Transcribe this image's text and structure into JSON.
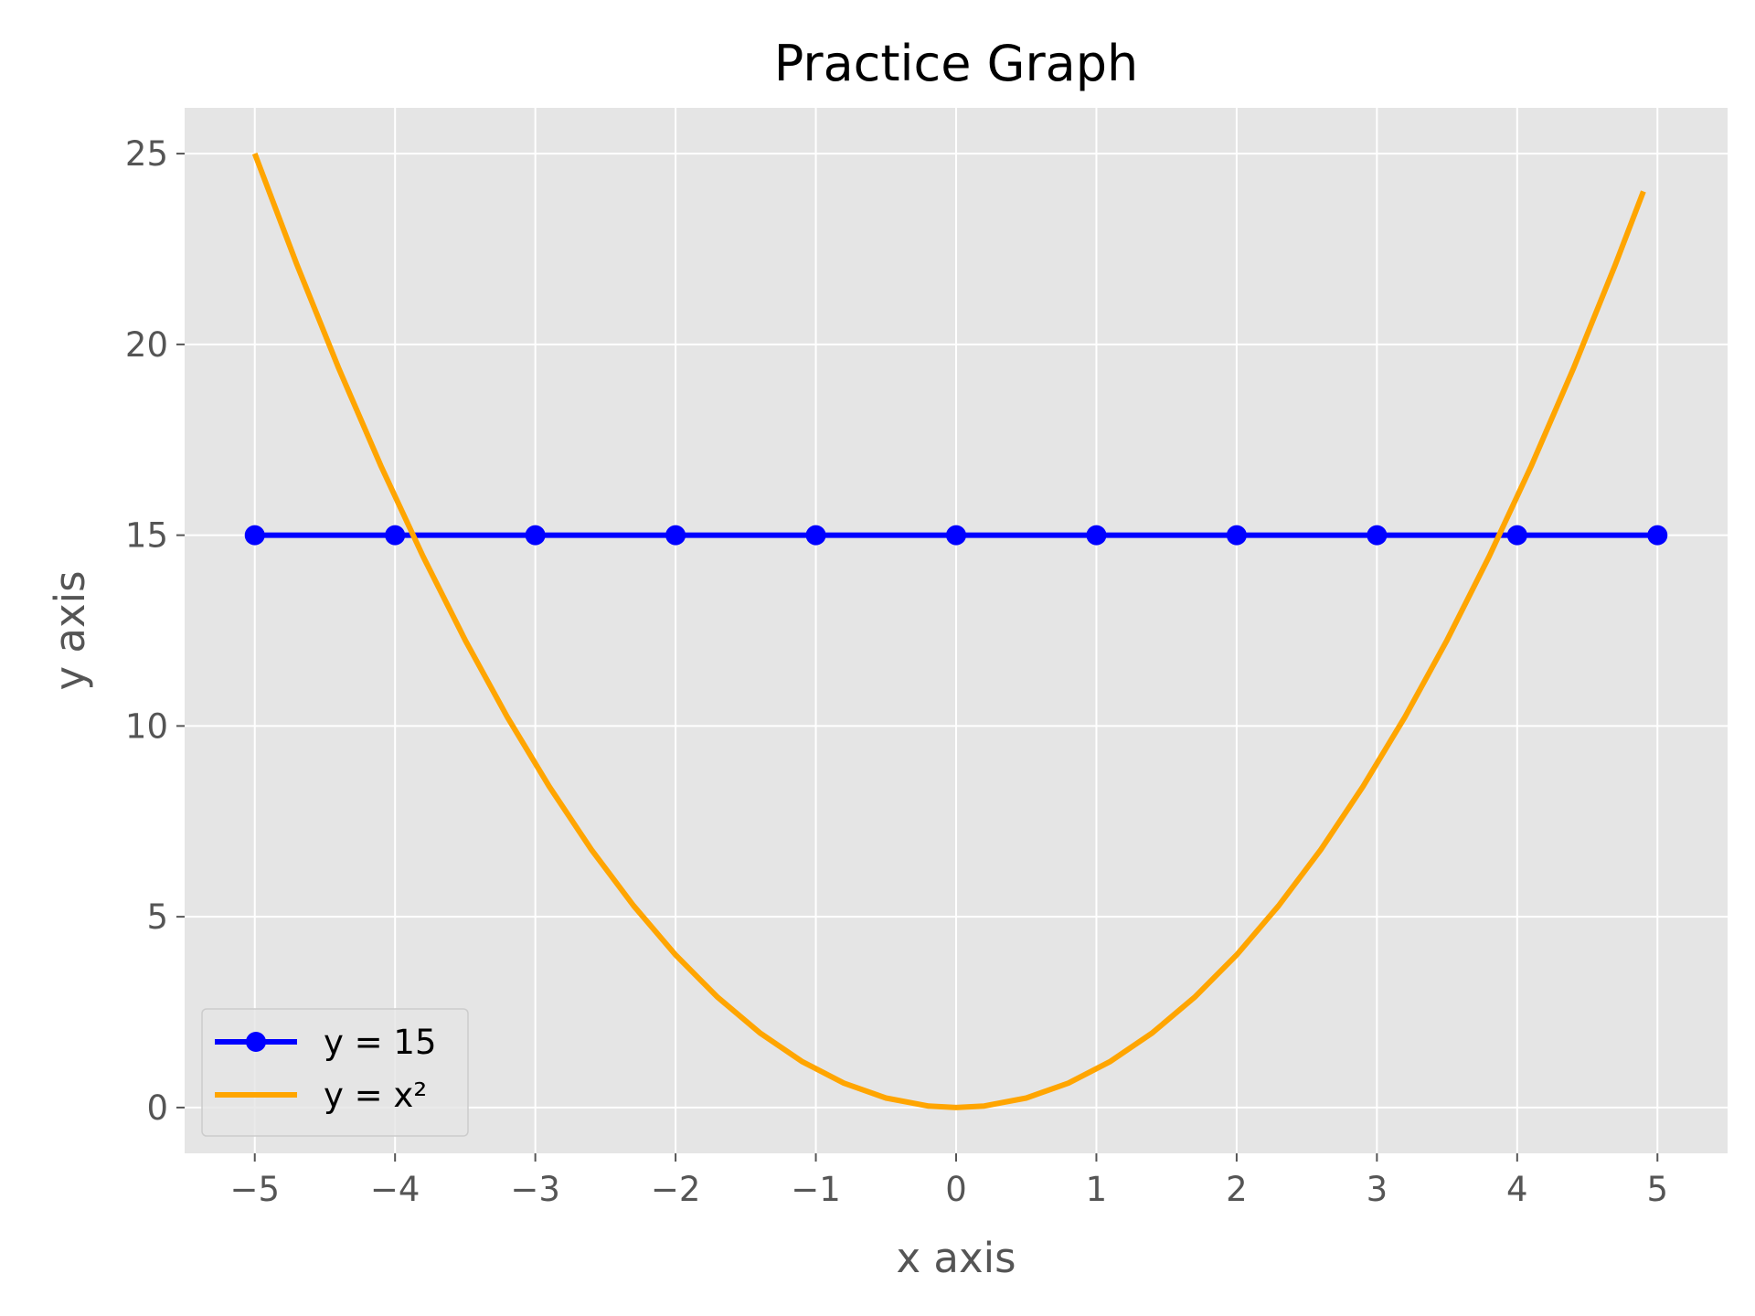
{
  "chart_data": {
    "type": "line",
    "title": "Practice Graph",
    "xlabel": "x axis",
    "ylabel": "y axis",
    "xlim": [
      -5.5,
      5.5
    ],
    "ylim": [
      -1.2,
      26.2
    ],
    "xticks": [
      -5,
      -4,
      -3,
      -2,
      -1,
      0,
      1,
      2,
      3,
      4,
      5
    ],
    "xtick_labels": [
      "−5",
      "−4",
      "−3",
      "−2",
      "−1",
      "0",
      "1",
      "2",
      "3",
      "4",
      "5"
    ],
    "yticks": [
      0,
      5,
      10,
      15,
      20,
      25
    ],
    "ytick_labels": [
      "0",
      "5",
      "10",
      "15",
      "20",
      "25"
    ],
    "grid": true,
    "background": "#e5e5e5",
    "legend_position": "lower-left",
    "series": [
      {
        "name": "y = 15",
        "color": "#0000ff",
        "marker": "circle",
        "x": [
          -5,
          -4,
          -3,
          -2,
          -1,
          0,
          1,
          2,
          3,
          4,
          5
        ],
        "y": [
          15,
          15,
          15,
          15,
          15,
          15,
          15,
          15,
          15,
          15,
          15
        ]
      },
      {
        "name": "y = x²",
        "color": "#ffa500",
        "marker": "none",
        "x": [
          -5.0,
          -4.7,
          -4.4,
          -4.1,
          -3.8,
          -3.5,
          -3.2,
          -2.9,
          -2.6,
          -2.3,
          -2.0,
          -1.7,
          -1.4,
          -1.1,
          -0.8,
          -0.5,
          -0.2,
          0.0,
          0.2,
          0.5,
          0.8,
          1.1,
          1.4,
          1.7,
          2.0,
          2.3,
          2.6,
          2.9,
          3.2,
          3.5,
          3.8,
          4.1,
          4.4,
          4.7,
          4.9
        ],
        "y": [
          25.0,
          22.09,
          19.36,
          16.81,
          14.44,
          12.25,
          10.24,
          8.41,
          6.76,
          5.29,
          4.0,
          2.89,
          1.96,
          1.21,
          0.64,
          0.25,
          0.04,
          0.0,
          0.04,
          0.25,
          0.64,
          1.21,
          1.96,
          2.89,
          4.0,
          5.29,
          6.76,
          8.41,
          10.24,
          12.25,
          14.44,
          16.81,
          19.36,
          22.09,
          24.01
        ]
      }
    ]
  }
}
